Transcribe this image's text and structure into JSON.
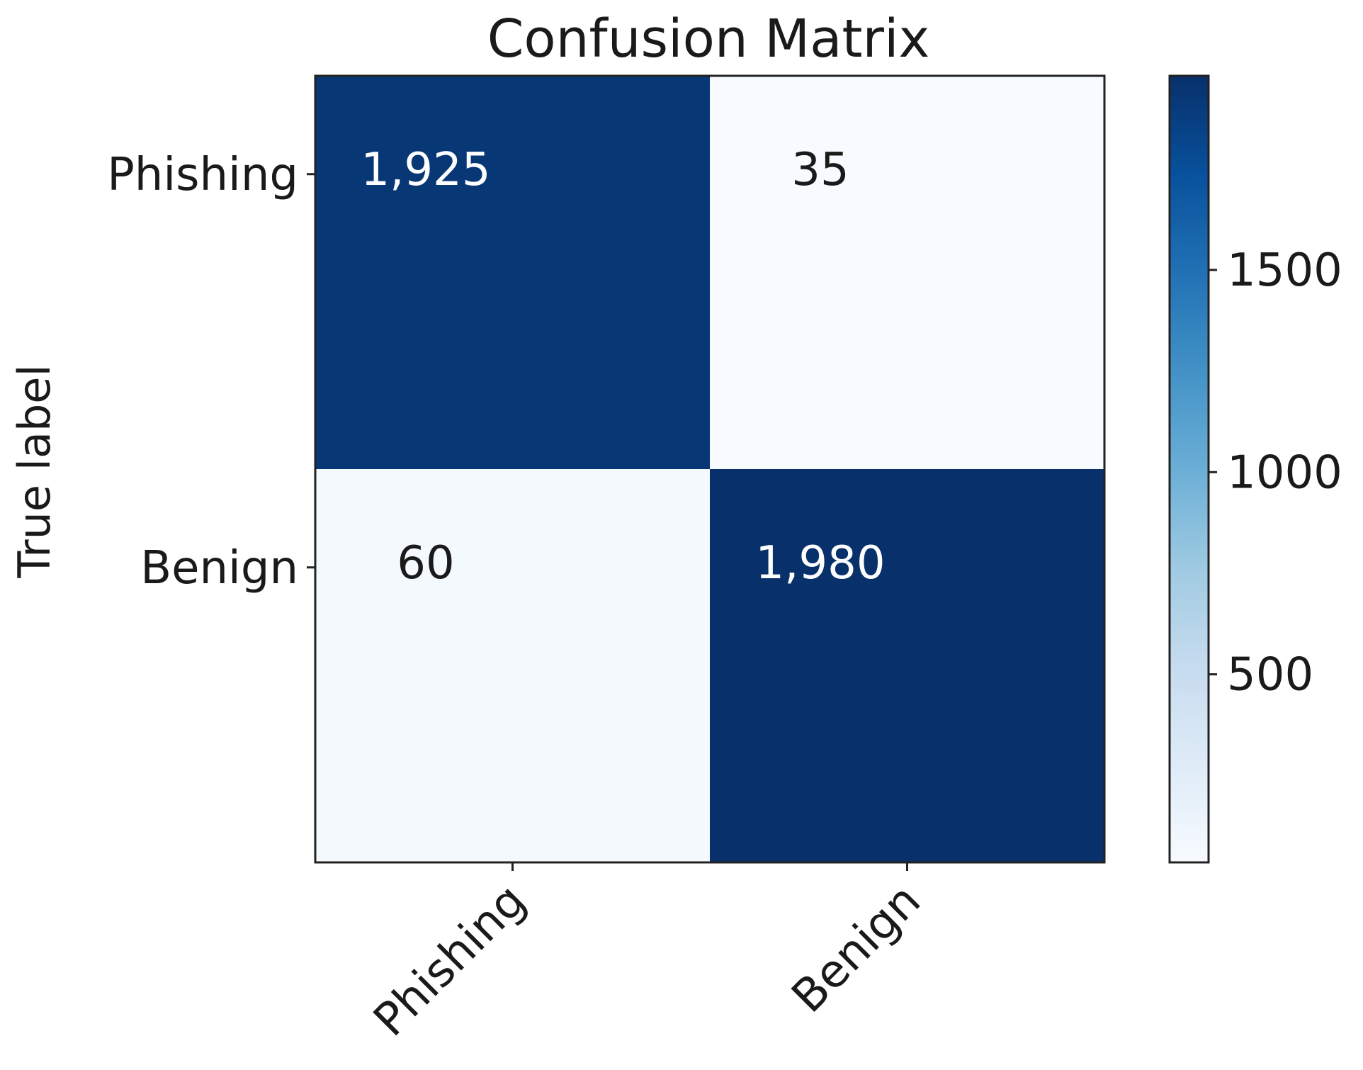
{
  "chart_data": {
    "type": "heatmap",
    "title": "Confusion Matrix",
    "ylabel": "True label",
    "xlabel": "",
    "x_categories": [
      "Phishing",
      "Benign"
    ],
    "y_categories": [
      "Phishing",
      "Benign"
    ],
    "values": [
      [
        1925,
        35
      ],
      [
        60,
        1980
      ]
    ],
    "value_labels": [
      [
        "1,925",
        "35"
      ],
      [
        "60",
        "1,980"
      ]
    ],
    "colorbar": {
      "colormap": "Blues",
      "min": 35,
      "max": 1980,
      "ticks": [
        500,
        1000,
        1500
      ],
      "tick_labels": [
        "500",
        "1000",
        "1500"
      ]
    },
    "colors": {
      "low": "#f7fbff",
      "high": "#08306b",
      "text_light": "#ffffff",
      "text_dark": "#1a1a1a"
    }
  }
}
